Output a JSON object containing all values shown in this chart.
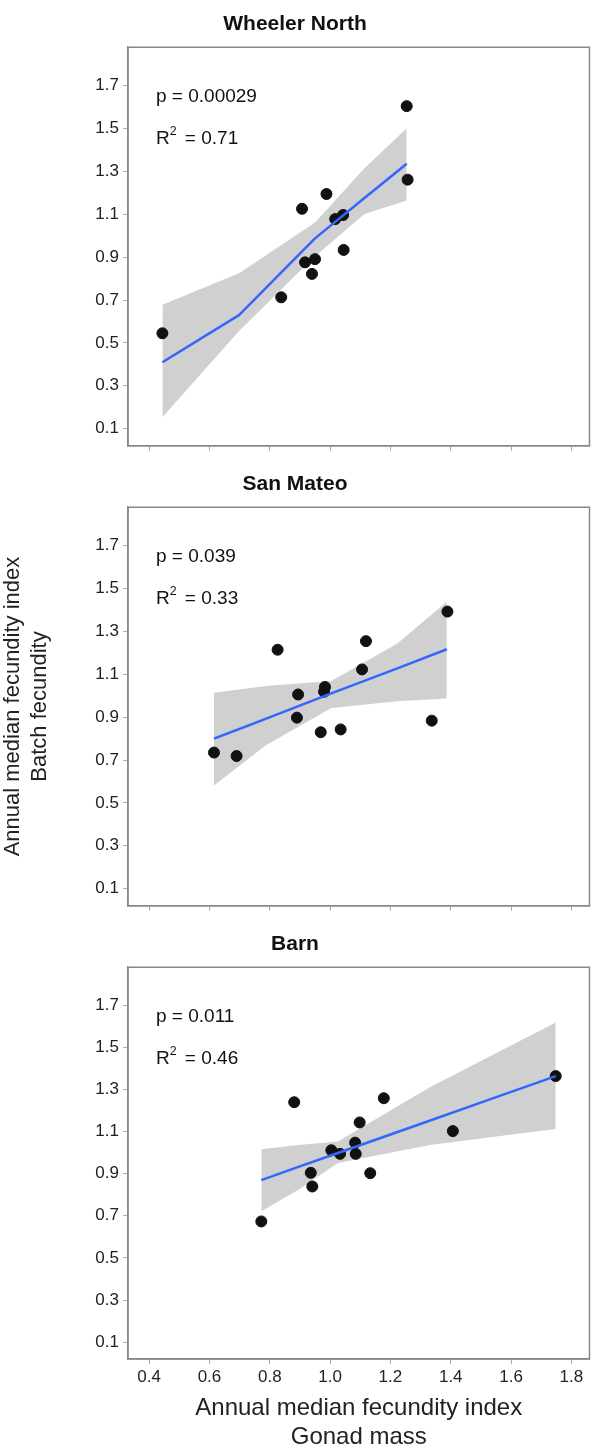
{
  "chart_data": [
    {
      "type": "scatter",
      "title": "Wheeler North",
      "xlim": [
        0.33,
        1.86
      ],
      "ylim": [
        0.02,
        1.88
      ],
      "xticks": [
        0.4,
        0.6,
        0.8,
        1.0,
        1.2,
        1.4,
        1.6,
        1.8
      ],
      "yticks": [
        0.1,
        0.3,
        0.5,
        0.7,
        0.9,
        1.1,
        1.3,
        1.5,
        1.7
      ],
      "tick_labels": "y",
      "grid": false,
      "legend": false,
      "marker": "circle",
      "annotations": [
        "p = 0.00029",
        "R$^{2}$ = 0.71"
      ],
      "series": [
        {
          "color": "#111111",
          "x": [
            0.444,
            0.838,
            0.907,
            0.917,
            0.95,
            0.94,
            0.988,
            1.017,
            1.043,
            1.045,
            1.254,
            1.257
          ],
          "values": [
            0.545,
            0.713,
            1.126,
            0.876,
            0.891,
            0.822,
            1.195,
            1.078,
            1.097,
            0.934,
            1.605,
            1.262
          ]
        },
        {
          "type": "line",
          "color": "#3366ff",
          "marker": "none",
          "x": [
            0.444,
            0.698,
            0.95,
            1.114,
            1.254
          ],
          "values": [
            0.41,
            0.63,
            0.988,
            1.176,
            1.336
          ],
          "lower": [
            0.153,
            0.556,
            0.904,
            1.102,
            1.165
          ],
          "upper": [
            0.678,
            0.825,
            1.062,
            1.315,
            1.502
          ]
        }
      ]
    },
    {
      "type": "scatter",
      "title": "San Mateo",
      "ylabel": "Annual median fecundity index\nBatch fecundity",
      "xlim": [
        0.33,
        1.86
      ],
      "ylim": [
        0.02,
        1.88
      ],
      "xticks": [
        0.4,
        0.6,
        0.8,
        1.0,
        1.2,
        1.4,
        1.6,
        1.8
      ],
      "yticks": [
        0.1,
        0.3,
        0.5,
        0.7,
        0.9,
        1.1,
        1.3,
        1.5,
        1.7
      ],
      "tick_labels": "y",
      "grid": false,
      "legend": false,
      "marker": "circle",
      "annotations": [
        "p = 0.039",
        "R$^{2}$ = 0.33"
      ],
      "series": [
        {
          "color": "#111111",
          "x": [
            0.615,
            0.69,
            0.826,
            0.894,
            0.89,
            0.969,
            0.983,
            0.98,
            1.035,
            1.106,
            1.119,
            1.337,
            1.389
          ],
          "values": [
            0.735,
            0.719,
            1.215,
            1.006,
            0.898,
            0.83,
            1.041,
            1.019,
            0.843,
            1.123,
            1.255,
            0.884,
            1.393
          ]
        },
        {
          "type": "line",
          "color": "#3366ff",
          "marker": "none",
          "x": [
            0.615,
            0.786,
            1.004,
            1.223,
            1.387
          ],
          "values": [
            0.8,
            0.892,
            1.011,
            1.128,
            1.217
          ],
          "lower": [
            0.581,
            0.768,
            0.943,
            0.974,
            0.987
          ],
          "upper": [
            1.014,
            1.046,
            1.069,
            1.244,
            1.439
          ]
        }
      ]
    },
    {
      "type": "scatter",
      "title": "Barn",
      "xlabel": "Annual median fecundity index\nGonad mass",
      "xlim": [
        0.33,
        1.86
      ],
      "ylim": [
        0.02,
        1.88
      ],
      "xticks": [
        0.4,
        0.6,
        0.8,
        {
          "value": 1,
          "label": "1.0"
        },
        1.2,
        1.4,
        1.6,
        1.8
      ],
      "yticks": [
        0.1,
        0.3,
        0.5,
        0.7,
        0.9,
        1.1,
        1.3,
        1.5,
        1.7
      ],
      "grid": false,
      "legend": false,
      "marker": "circle",
      "annotations": [
        "p = 0.011",
        "R$^{2}$ = 0.46"
      ],
      "series": [
        {
          "color": "#111111",
          "x": [
            0.772,
            0.881,
            0.936,
            0.941,
            1.004,
            1.033,
            1.083,
            1.085,
            1.098,
            1.133,
            1.178,
            1.407,
            1.748
          ],
          "values": [
            0.673,
            1.239,
            0.904,
            0.839,
            1.011,
            0.994,
            1.047,
            0.994,
            1.143,
            0.902,
            1.258,
            1.102,
            1.363
          ]
        },
        {
          "type": "line",
          "color": "#3366ff",
          "marker": "none",
          "x": [
            0.772,
            0.895,
            1.026,
            1.332,
            1.748
          ],
          "values": [
            0.869,
            0.932,
            0.998,
            1.152,
            1.363
          ],
          "lower": [
            0.721,
            0.824,
            0.95,
            1.036,
            1.112
          ],
          "upper": [
            1.016,
            1.036,
            1.052,
            1.311,
            1.618
          ]
        }
      ]
    }
  ]
}
